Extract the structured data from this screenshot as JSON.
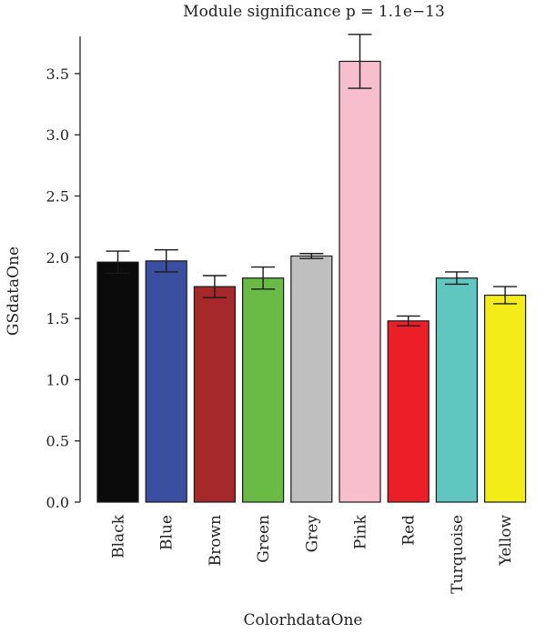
{
  "chart_data": {
    "type": "bar",
    "title": "Module significance p = 1.1e−13",
    "xlabel": "ColorhdataOne",
    "ylabel": "GSdataOne",
    "ylim": [
      0,
      3.5
    ],
    "yticks": [
      "0.0",
      "0.5",
      "1.0",
      "1.5",
      "2.0",
      "2.5",
      "3.0",
      "3.5"
    ],
    "categories": [
      "Black",
      "Blue",
      "Brown",
      "Green",
      "Grey",
      "Pink",
      "Red",
      "Turquoise",
      "Yellow"
    ],
    "values": [
      1.96,
      1.97,
      1.76,
      1.83,
      2.01,
      3.6,
      1.48,
      1.83,
      1.69
    ],
    "errors": [
      0.09,
      0.09,
      0.09,
      0.09,
      0.02,
      0.22,
      0.04,
      0.05,
      0.07
    ],
    "colors": [
      "#0b0b0c",
      "#3a4fa0",
      "#a5282b",
      "#69bb46",
      "#bfbfbf",
      "#f7bfce",
      "#ec1e27",
      "#5fc6c0",
      "#f3ec19"
    ],
    "grid": false,
    "legend": "none"
  }
}
